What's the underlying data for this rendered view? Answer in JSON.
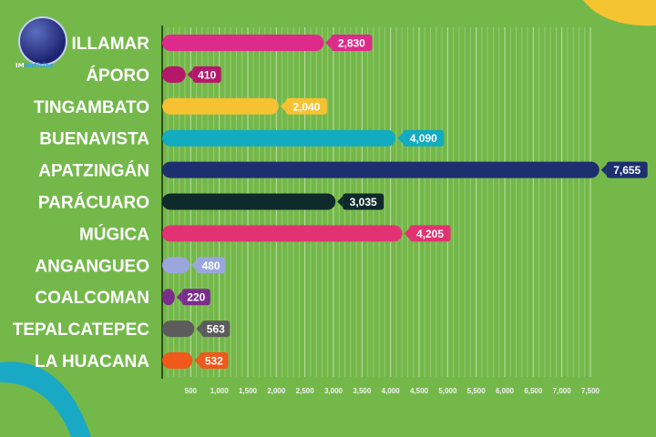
{
  "chart_data": {
    "type": "bar",
    "orientation": "horizontal",
    "categories": [
      "ILLAMAR",
      "ÁPORO",
      "TINGAMBATO",
      "BUENAVISTA",
      "APATZINGÁN",
      "PARÁCUARO",
      "MÚGICA",
      "ANGANGUEO",
      "COALCOMAN",
      "TEPALCATEPEC",
      "LA HUACANA"
    ],
    "values": [
      2830,
      410,
      2040,
      4090,
      7655,
      3035,
      4205,
      480,
      220,
      563,
      532
    ],
    "value_labels": [
      "2,830",
      "410",
      "2,040",
      "4,090",
      "7,655",
      "3,035",
      "4,205",
      "480",
      "220",
      "563",
      "532"
    ],
    "colors": [
      "#de2a8a",
      "#b5176b",
      "#f6c232",
      "#13abbf",
      "#1d2f6e",
      "#0f2a2a",
      "#e23273",
      "#9aa6dc",
      "#7a2e8c",
      "#5c5c5c",
      "#f0581c"
    ],
    "xlim": [
      0,
      7600
    ],
    "x_ticks": [
      500,
      1000,
      1500,
      2000,
      2500,
      3000,
      3500,
      4000,
      4500,
      5000,
      5500,
      6000,
      6500,
      7000,
      7500
    ],
    "x_tick_labels": [
      "500",
      "1,000",
      "1,500",
      "2,000",
      "2,500",
      "3,000",
      "3,500",
      "4,000",
      "4,500",
      "5,000",
      "5,500",
      "6,000",
      "6,500",
      "7,000",
      "7,500"
    ],
    "grid": true,
    "background": "#74b84a"
  },
  "logo": {
    "text_a": "IM",
    "text_b": "Noticias"
  }
}
